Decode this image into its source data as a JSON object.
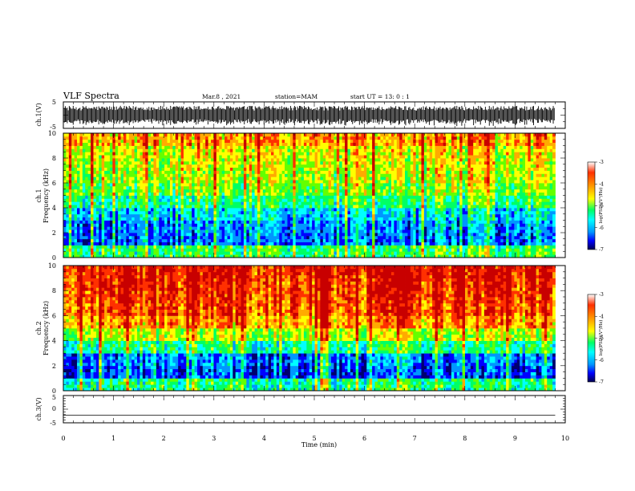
{
  "header": {
    "title": "VLF Spectra",
    "date": "Mar.8 , 2021",
    "station": "station=MAM",
    "start": "start UT = 13: 0 : 1"
  },
  "chart_data": [
    {
      "type": "line",
      "panel": "ch1-waveform",
      "ylabel": "ch.1(V)",
      "ylim": [
        -5,
        5
      ],
      "y_ticks": [
        "5",
        "-5"
      ],
      "xlim": [
        0,
        10
      ],
      "description_values": {
        "amplitude_typical_V": 3.2,
        "baseline_V": 0
      }
    },
    {
      "type": "heatmap",
      "panel": "ch1-spectrogram",
      "ylabel": "ch.1 Frequency (kHz)",
      "ylabel_line1": "ch.1",
      "ylabel_line2": "Frequency (kHz)",
      "ylim": [
        0,
        10
      ],
      "y_ticks": [
        "0",
        "2",
        "4",
        "6",
        "8",
        "10"
      ],
      "xlim": [
        0,
        10
      ],
      "data_extent_min": 9.8,
      "colorbar": {
        "label": "log(PSD)(V²/Hz)",
        "range": [
          -7,
          -3
        ],
        "ticks": [
          "-3",
          "-4",
          "-5",
          "-6",
          "-7"
        ]
      },
      "profile": [
        {
          "freq_kHz": 0.5,
          "log_psd": -5.1
        },
        {
          "freq_kHz": 1.5,
          "log_psd": -6.1
        },
        {
          "freq_kHz": 2.5,
          "log_psd": -6.0
        },
        {
          "freq_kHz": 3.5,
          "log_psd": -5.7
        },
        {
          "freq_kHz": 4.5,
          "log_psd": -5.2
        },
        {
          "freq_kHz": 5.5,
          "log_psd": -4.8
        },
        {
          "freq_kHz": 6.5,
          "log_psd": -4.6
        },
        {
          "freq_kHz": 7.5,
          "log_psd": -4.5
        },
        {
          "freq_kHz": 8.5,
          "log_psd": -4.4
        },
        {
          "freq_kHz": 9.5,
          "log_psd": -4.0
        }
      ]
    },
    {
      "type": "heatmap",
      "panel": "ch2-spectrogram",
      "ylabel": "ch.2 Frequency (kHz)",
      "ylabel_line1": "ch.2",
      "ylabel_line2": "Frequency (kHz)",
      "ylim": [
        0,
        10
      ],
      "y_ticks": [
        "0",
        "2",
        "4",
        "6",
        "8",
        "10"
      ],
      "xlim": [
        0,
        10
      ],
      "data_extent_min": 9.8,
      "colorbar": {
        "label": "log(PSD)(V²/Hz)",
        "range": [
          -7,
          -3
        ],
        "ticks": [
          "-3",
          "-4",
          "-5",
          "-6",
          "-7"
        ]
      },
      "profile": [
        {
          "freq_kHz": 0.5,
          "log_psd": -5.3
        },
        {
          "freq_kHz": 1.5,
          "log_psd": -6.3
        },
        {
          "freq_kHz": 2.5,
          "log_psd": -6.1
        },
        {
          "freq_kHz": 3.5,
          "log_psd": -5.3
        },
        {
          "freq_kHz": 4.5,
          "log_psd": -4.6
        },
        {
          "freq_kHz": 5.5,
          "log_psd": -4.0
        },
        {
          "freq_kHz": 6.5,
          "log_psd": -3.7
        },
        {
          "freq_kHz": 7.5,
          "log_psd": -3.6
        },
        {
          "freq_kHz": 8.5,
          "log_psd": -3.5
        },
        {
          "freq_kHz": 9.5,
          "log_psd": -3.4
        }
      ]
    },
    {
      "type": "line",
      "panel": "ch3-waveform",
      "ylabel": "ch.3(V)",
      "ylim": [
        -5,
        5
      ],
      "y_ticks": [
        "5",
        "0",
        "-5"
      ],
      "xlim": [
        0,
        10
      ],
      "series": [
        {
          "x": [
            0,
            9.8
          ],
          "y": [
            -2.2,
            -2.2
          ]
        }
      ]
    }
  ],
  "x_axis": {
    "xlabel": "Time (min)",
    "ticks": [
      "0",
      "1",
      "2",
      "3",
      "4",
      "5",
      "6",
      "7",
      "8",
      "9",
      "10"
    ]
  },
  "colors": {
    "colormap": [
      "#00006e",
      "#0000ff",
      "#0096ff",
      "#00ffff",
      "#00ff64",
      "#64ff00",
      "#ffff00",
      "#ffaa00",
      "#ff3000",
      "#c80000"
    ],
    "axes": "#000000",
    "background": "#ffffff"
  }
}
